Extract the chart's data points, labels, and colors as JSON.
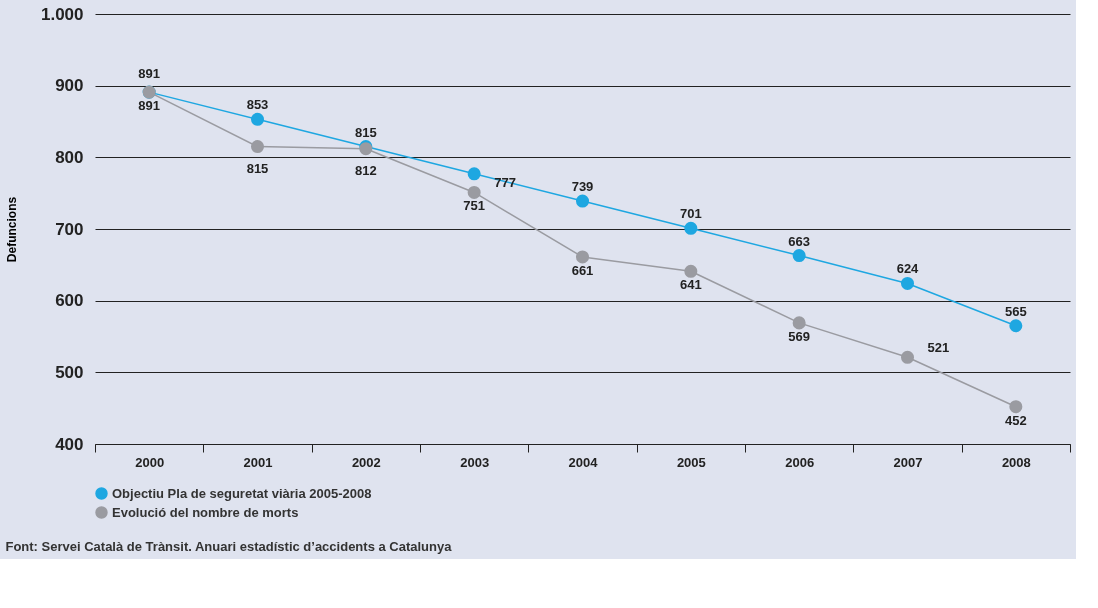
{
  "chart_data": {
    "type": "line",
    "ylabel": "Defuncions",
    "categories": [
      "2000",
      "2001",
      "2002",
      "2003",
      "2004",
      "2005",
      "2006",
      "2007",
      "2008"
    ],
    "series": [
      {
        "name": "Objectiu Pla de seguretat viària 2005-2008",
        "color": "#1ea7e1",
        "values": [
          891,
          853,
          815,
          777,
          739,
          701,
          663,
          624,
          565
        ]
      },
      {
        "name": "Evolució del nombre de morts",
        "color": "#9a9ba1",
        "values": [
          891,
          815,
          812,
          751,
          661,
          641,
          569,
          521,
          452
        ]
      }
    ],
    "ylim": [
      400,
      1000
    ],
    "yticks": [
      400,
      500,
      600,
      700,
      800,
      900,
      {
        "value": 1000,
        "label": "1.000"
      }
    ],
    "grid": "y",
    "legend": "bottom",
    "marker": "circle",
    "line_style": "solid",
    "data_labels": true,
    "annotations": [
      "Font: Servei Català de Trànsit. Anuari estadístic d’accidents a Catalunya"
    ]
  }
}
